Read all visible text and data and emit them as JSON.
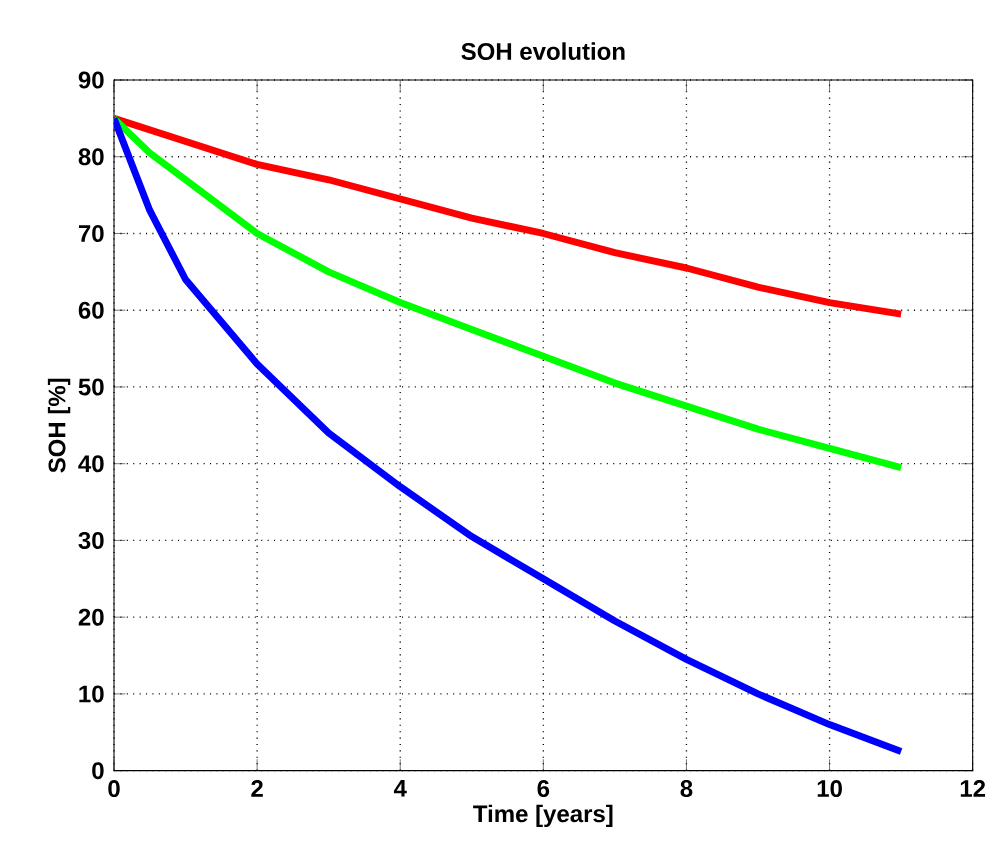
{
  "chart_data": {
    "type": "line",
    "title": "SOH evolution",
    "xlabel": "Time [years]",
    "ylabel": "SOH [%]",
    "xlim": [
      0,
      12
    ],
    "xticks": [
      0,
      2,
      4,
      6,
      8,
      10,
      12
    ],
    "ylim": [
      0,
      90
    ],
    "yticks": [
      0,
      10,
      20,
      30,
      40,
      50,
      60,
      70,
      80,
      90
    ],
    "grid": true,
    "line_style": "solid",
    "marker": "none",
    "x": [
      0,
      0.5,
      1,
      2,
      3,
      4,
      5,
      6,
      7,
      8,
      9,
      10,
      11
    ],
    "series": [
      {
        "color": "#ff0000",
        "values": [
          85,
          83.5,
          82,
          79,
          77,
          74.5,
          72,
          70,
          67.5,
          65.5,
          63,
          61,
          59.5
        ]
      },
      {
        "color": "#00ff00",
        "values": [
          85,
          80.5,
          77,
          70,
          65,
          61,
          57.5,
          54,
          50.5,
          47.5,
          44.5,
          42,
          39.5
        ]
      },
      {
        "color": "#0000ff",
        "values": [
          85,
          73,
          64,
          53,
          44,
          37,
          30.5,
          25,
          19.5,
          14.5,
          10,
          6,
          2.5
        ]
      }
    ]
  }
}
